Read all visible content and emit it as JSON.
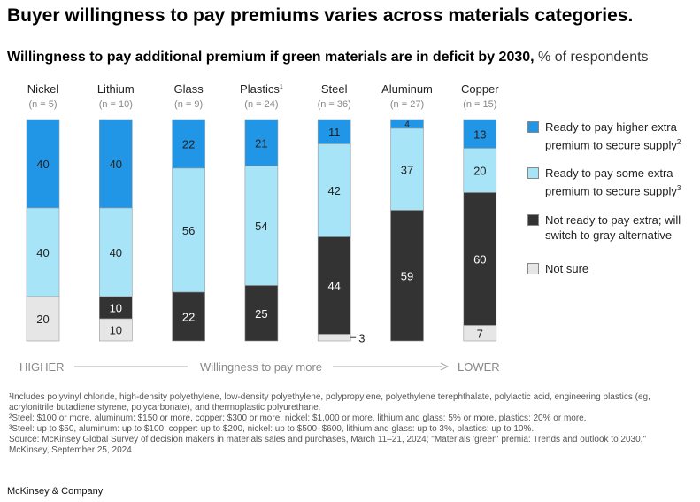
{
  "title": "Buyer willingness to pay premiums varies across materials categories.",
  "subtitle_bold": "Willingness to pay additional premium if green materials are in deficit by 2030,",
  "subtitle_unit": " % of respondents",
  "chart_data": {
    "type": "bar",
    "stacked": true,
    "categories": [
      "Nickel",
      "Lithium",
      "Glass",
      "Plastics",
      "Steel",
      "Aluminum",
      "Copper"
    ],
    "category_superscripts": [
      "",
      "",
      "",
      "1",
      "",
      "",
      ""
    ],
    "sample_sizes": [
      "(n = 5)",
      "(n = 10)",
      "(n = 9)",
      "(n = 24)",
      "(n = 36)",
      "(n = 27)",
      "(n = 15)"
    ],
    "series": [
      {
        "name": "Ready to pay higher extra premium to secure supply",
        "sup": "2",
        "color": "#2196e6",
        "values": [
          40,
          40,
          22,
          21,
          11,
          4,
          13
        ]
      },
      {
        "name": "Ready to pay some extra premium to secure supply",
        "sup": "3",
        "color": "#a8e4f8",
        "values": [
          40,
          40,
          56,
          54,
          42,
          37,
          20
        ]
      },
      {
        "name": "Not ready to pay extra; will switch to gray alternative",
        "sup": "",
        "color": "#333333",
        "values": [
          0,
          10,
          22,
          25,
          44,
          59,
          60
        ]
      },
      {
        "name": "Not sure",
        "sup": "",
        "color": "#e6e6e6",
        "values": [
          20,
          10,
          0,
          0,
          3,
          0,
          7
        ]
      }
    ],
    "ylim": [
      0,
      100
    ],
    "axis_left": "HIGHER",
    "axis_center": "Willingness to pay more",
    "axis_right": "LOWER",
    "legend_placement": "right"
  },
  "footnotes": [
    "¹Includes polyvinyl chloride, high-density polyethylene, low-density polyethylene, polypropylene, polyethylene terephthalate, polylactic acid, engineering plastics (eg, acrylonitrile butadiene styrene, polycarbonate), and thermoplastic polyurethane.",
    "²Steel: $100 or more, aluminum: $150 or more, copper: $300 or more, nickel: $1,000 or more, lithium and glass: 5% or more, plastics: 20% or more.",
    "³Steel: up to $50, aluminum: up to $100, copper: up to $200, nickel: up to $500–$600, lithium and glass: up to 3%, plastics: up to 10%.",
    "Source: McKinsey Global Survey of decision makers in materials sales and purchases, March 11–21, 2024; \"Materials 'green' premia: Trends and outlook to 2030,\" McKinsey, September 25, 2024"
  ],
  "brand": "McKinsey & Company"
}
